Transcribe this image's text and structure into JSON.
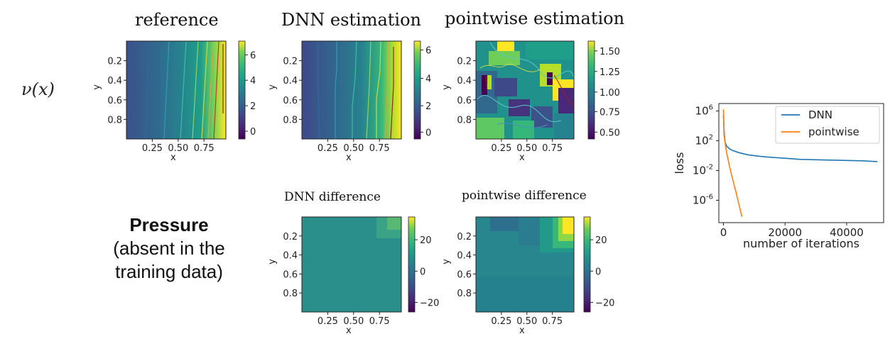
{
  "row_labels": {
    "nu": "ν(x)",
    "pressure_title": "Pressure",
    "pressure_note_1": "(absent in the",
    "pressure_note_2": "training data)"
  },
  "axis_labels": {
    "x": "x",
    "y": "y"
  },
  "chart_data": [
    {
      "id": "reference",
      "type": "heatmap",
      "title": "reference",
      "xlabel": "x",
      "ylabel": "y",
      "xticks": [
        "0.25",
        "0.50",
        "0.75"
      ],
      "yticks": [
        "0.2",
        "0.4",
        "0.6",
        "0.8"
      ],
      "colorbar_ticks": [
        "6",
        "4",
        "2",
        "0"
      ],
      "colorbar_range": [
        -0.5,
        7
      ]
    },
    {
      "id": "dnn-estimation",
      "type": "heatmap",
      "title": "DNN estimation",
      "xlabel": "x",
      "ylabel": "y",
      "xticks": [
        "0.25",
        "0.50",
        "0.75"
      ],
      "yticks": [
        "0.2",
        "0.4",
        "0.6",
        "0.8"
      ],
      "colorbar_ticks": [
        "6",
        "4",
        "2",
        "0"
      ],
      "colorbar_range": [
        -0.5,
        6.5
      ]
    },
    {
      "id": "pointwise-estimation",
      "type": "heatmap",
      "title": "pointwise estimation",
      "xlabel": "x",
      "ylabel": "y",
      "xticks": [
        "0.25",
        "0.50",
        "0.75"
      ],
      "yticks": [
        "0.2",
        "0.4",
        "0.6",
        "0.8"
      ],
      "colorbar_ticks": [
        "1.50",
        "1.25",
        "1.00",
        "0.75",
        "0.50"
      ],
      "colorbar_range": [
        0.4,
        1.6
      ]
    },
    {
      "id": "dnn-difference",
      "type": "heatmap",
      "title": "DNN difference",
      "xlabel": "x",
      "ylabel": "y",
      "xticks": [
        "0.25",
        "0.50",
        "0.75"
      ],
      "yticks": [
        "0.2",
        "0.4",
        "0.6",
        "0.8"
      ],
      "colorbar_ticks": [
        "20",
        "0",
        "−20"
      ],
      "colorbar_range": [
        -30,
        30
      ]
    },
    {
      "id": "pointwise-difference",
      "type": "heatmap",
      "title": "pointwise difference",
      "xlabel": "x",
      "ylabel": "y",
      "xticks": [
        "0.25",
        "0.50",
        "0.75"
      ],
      "yticks": [
        "0.2",
        "0.4",
        "0.6",
        "0.8"
      ],
      "colorbar_ticks": [
        "20",
        "0",
        "−20"
      ],
      "colorbar_range": [
        -30,
        30
      ]
    },
    {
      "id": "loss-curve",
      "type": "line",
      "xlabel": "number of iterations",
      "ylabel": "loss",
      "xticks": [
        "0",
        "20000",
        "40000"
      ],
      "yticks": [
        "10^6",
        "10^2",
        "10^-2",
        "10^-6"
      ],
      "xlim": [
        -1500,
        52000
      ],
      "ylim_log10": [
        -9,
        7
      ],
      "y_scale": "log",
      "legend_position": "top-right",
      "series": [
        {
          "name": "DNN",
          "color": "#1f77b4",
          "x": [
            0,
            200,
            500,
            1000,
            2000,
            3000,
            5000,
            8000,
            12000,
            16000,
            20000,
            25000,
            30000,
            35000,
            40000,
            45000,
            50000
          ],
          "y_log10": [
            5.5,
            2.8,
            1.8,
            1.3,
            0.9,
            0.7,
            0.4,
            0.1,
            -0.1,
            -0.25,
            -0.35,
            -0.5,
            -0.55,
            -0.6,
            -0.65,
            -0.7,
            -0.8
          ]
        },
        {
          "name": "pointwise",
          "color": "#ff7f0e",
          "x": [
            0,
            200,
            500,
            1000,
            1500,
            2000,
            3000,
            4000,
            5000,
            6000
          ],
          "y_log10": [
            6.2,
            3.5,
            1.8,
            0.5,
            -0.5,
            -1.5,
            -3.2,
            -4.8,
            -6.5,
            -8.2
          ]
        }
      ]
    }
  ]
}
